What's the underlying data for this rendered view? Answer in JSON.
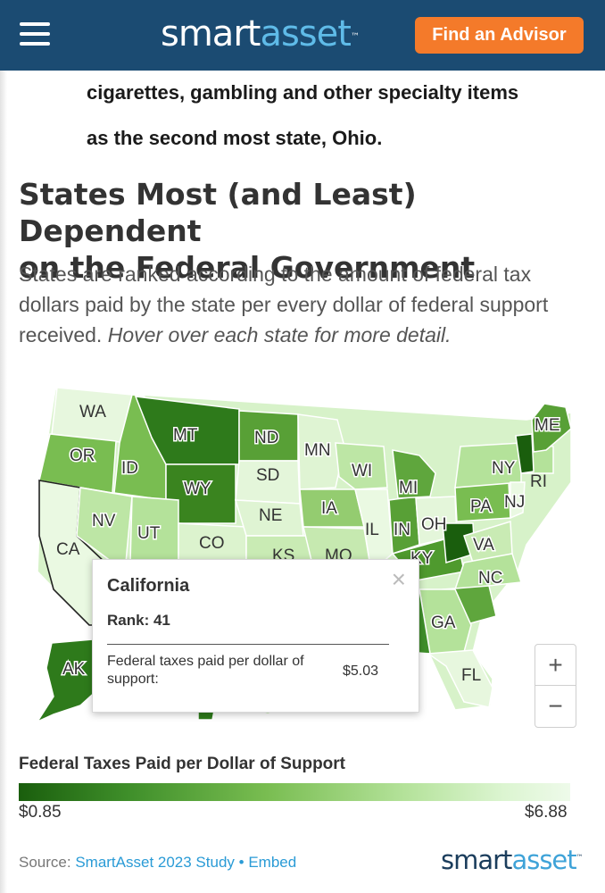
{
  "header": {
    "brand_part1": "smart",
    "brand_part2": "asset",
    "brand_tm": "™",
    "advisor_button": "Find an Advisor"
  },
  "article": {
    "intro_line1": "cigarettes, gambling and other specialty items",
    "intro_line2": "as the second most state, Ohio.",
    "heading_line1": "States Most (and Least) Dependent",
    "heading_line2": "on the Federal Government",
    "description": "States are ranked according to the amount of federal tax dollars paid by the state per every dollar of federal support received.",
    "description_italic": "Hover over each state for more detail."
  },
  "map": {
    "state_labels": [
      "WA",
      "MT",
      "ND",
      "ME",
      "OR",
      "ID",
      "MN",
      "WY",
      "SD",
      "WI",
      "MI",
      "NY",
      "RI",
      "NJ",
      "PA",
      "IA",
      "NE",
      "NV",
      "UT",
      "CO",
      "CA",
      "IL",
      "IN",
      "OH",
      "VA",
      "KS",
      "MO",
      "KY",
      "NC",
      "GA",
      "AK",
      "FL"
    ],
    "colors": {
      "darkest": "#1a5e0d",
      "dark": "#3f8f2a",
      "mid": "#79bd51",
      "light": "#b4e29a",
      "lighter": "#d7f2c9",
      "lightest": "#eefaea"
    },
    "tooltip": {
      "state": "California",
      "rank_label": "Rank:",
      "rank_value": "41",
      "metric_label": "Federal taxes paid per dollar of support:",
      "metric_value": "$5.03",
      "close_icon": "×"
    },
    "zoom_in": "+",
    "zoom_out": "−"
  },
  "legend": {
    "title": "Federal Taxes Paid per Dollar of Support",
    "min": "$0.85",
    "max": "$6.88"
  },
  "footer": {
    "source_prefix": "Source: ",
    "source_link": "SmartAsset 2023 Study",
    "separator": " • ",
    "embed_link": "Embed",
    "brand_part1": "smart",
    "brand_part2": "asset",
    "brand_tm": "™"
  }
}
